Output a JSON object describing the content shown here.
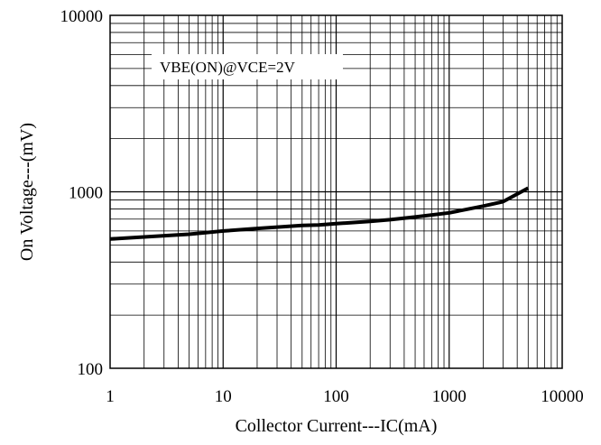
{
  "chart_data": {
    "type": "line",
    "title": "",
    "xlabel": "Collector Current---IC(mA)",
    "ylabel": "On Voltage---(mV)",
    "x_scale": "log",
    "y_scale": "log",
    "xlim": [
      1,
      10000
    ],
    "ylim": [
      100,
      10000
    ],
    "x_ticks": [
      "1",
      "10",
      "100",
      "1000",
      "10000"
    ],
    "y_ticks": [
      "100",
      "1000",
      "10000"
    ],
    "grid": true,
    "annotation": "VBE(ON)@VCE=2V",
    "series": [
      {
        "x": [
          1,
          2,
          5,
          10,
          20,
          50,
          70,
          100,
          200,
          300,
          500,
          1000,
          2000,
          3000,
          5000
        ],
        "y": [
          540,
          555,
          575,
          600,
          620,
          645,
          648,
          660,
          680,
          695,
          720,
          760,
          830,
          880,
          1050
        ]
      }
    ]
  }
}
